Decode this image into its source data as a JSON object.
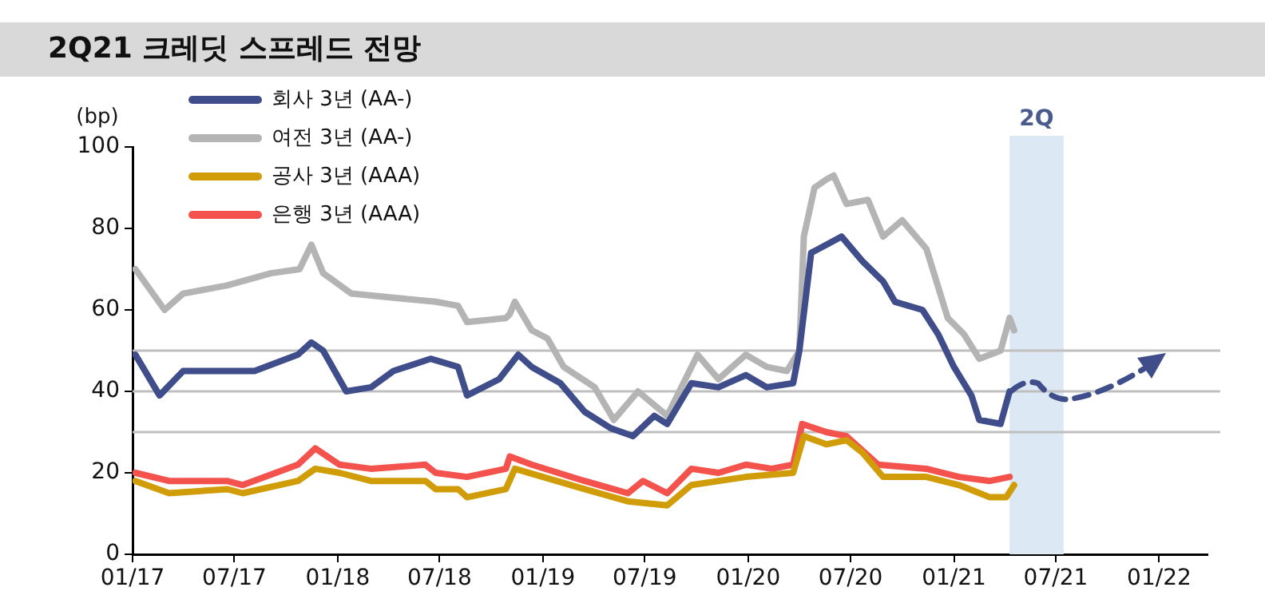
{
  "chart_data": {
    "type": "line",
    "title": "2Q21 크레딧 스프레드 전망",
    "ylabel": "(bp)",
    "xlim": [
      "2017-01-01",
      "2022-03-28"
    ],
    "xticks": [
      {
        "value": "2017-01-01",
        "label": "01/17"
      },
      {
        "value": "2017-07-01",
        "label": "07/17"
      },
      {
        "value": "2018-01-01",
        "label": "01/18"
      },
      {
        "value": "2018-07-01",
        "label": "07/18"
      },
      {
        "value": "2019-01-01",
        "label": "01/19"
      },
      {
        "value": "2019-07-01",
        "label": "07/19"
      },
      {
        "value": "2020-01-01",
        "label": "01/20"
      },
      {
        "value": "2020-07-01",
        "label": "07/20"
      },
      {
        "value": "2021-01-01",
        "label": "01/21"
      },
      {
        "value": "2021-07-01",
        "label": "07/21"
      },
      {
        "value": "2022-01-01",
        "label": "01/22"
      }
    ],
    "ylim": [
      0,
      100
    ],
    "yticks": [
      0,
      20,
      40,
      60,
      80,
      100
    ],
    "grid": false,
    "legend": "top left",
    "series": [
      {
        "name": "회사 3년 (AA-)",
        "color": "#3f4d8a",
        "x": [
          "2017-01-06",
          "2017-02-18",
          "2017-04-01",
          "2017-06-10",
          "2017-08-06",
          "2017-10-22",
          "2017-11-15",
          "2017-12-06",
          "2018-01-16",
          "2018-03-01",
          "2018-04-10",
          "2018-06-15",
          "2018-08-03",
          "2018-08-19",
          "2018-10-15",
          "2018-11-18",
          "2018-12-12",
          "2019-02-01",
          "2019-03-16",
          "2019-05-01",
          "2019-06-10",
          "2019-07-18",
          "2019-08-10",
          "2019-09-22",
          "2019-11-09",
          "2019-12-28",
          "2020-02-03",
          "2020-03-21",
          "2020-04-01",
          "2020-04-22",
          "2020-05-19",
          "2020-06-15",
          "2020-07-22",
          "2020-08-28",
          "2020-09-18",
          "2020-11-06",
          "2020-12-04",
          "2021-01-01",
          "2021-02-01",
          "2021-02-15",
          "2021-03-25",
          "2021-04-10"
        ],
        "values": [
          49,
          39,
          45,
          45,
          45,
          49,
          52,
          50,
          40,
          41,
          45,
          48,
          46,
          39,
          43,
          49,
          46,
          42,
          35,
          31,
          29,
          34,
          32,
          42,
          41,
          44,
          41,
          42,
          50,
          74,
          76,
          78,
          72,
          67,
          62,
          60,
          54,
          46,
          39,
          33,
          32,
          40
        ]
      },
      {
        "name": "여전 3년 (AA-)",
        "color": "#b4b4b4",
        "x": [
          "2017-01-06",
          "2017-02-27",
          "2017-04-01",
          "2017-06-18",
          "2017-09-04",
          "2017-10-25",
          "2017-11-15",
          "2017-12-06",
          "2018-01-25",
          "2018-04-10",
          "2018-06-24",
          "2018-08-03",
          "2018-08-19",
          "2018-10-27",
          "2018-11-03",
          "2018-11-12",
          "2018-12-12",
          "2019-01-09",
          "2019-02-07",
          "2019-04-03",
          "2019-05-07",
          "2019-06-19",
          "2019-08-10",
          "2019-10-03",
          "2019-11-09",
          "2019-12-28",
          "2020-02-03",
          "2020-03-10",
          "2020-04-01",
          "2020-04-09",
          "2020-04-28",
          "2020-05-19",
          "2020-06-01",
          "2020-06-24",
          "2020-08-01",
          "2020-08-28",
          "2020-10-01",
          "2020-11-13",
          "2020-12-21",
          "2021-01-19",
          "2021-02-15",
          "2021-03-25",
          "2021-04-10",
          "2021-04-18"
        ],
        "values": [
          70,
          60,
          64,
          66,
          69,
          70,
          76,
          69,
          64,
          63,
          62,
          61,
          57,
          58,
          59,
          62,
          55,
          53,
          46,
          41,
          33,
          40,
          34,
          49,
          43,
          49,
          46,
          45,
          50,
          78,
          90,
          92,
          93,
          86,
          87,
          78,
          82,
          75,
          58,
          54,
          48,
          50,
          58,
          55
        ]
      },
      {
        "name": "공사 3년 (AAA)",
        "color": "#d09c08",
        "x": [
          "2017-01-06",
          "2017-03-07",
          "2017-06-18",
          "2017-07-16",
          "2017-10-22",
          "2017-11-22",
          "2018-01-04",
          "2018-03-01",
          "2018-06-06",
          "2018-06-24",
          "2018-08-03",
          "2018-08-19",
          "2018-10-27",
          "2018-11-12",
          "2019-03-16",
          "2019-06-01",
          "2019-08-10",
          "2019-09-22",
          "2019-12-28",
          "2020-03-21",
          "2020-04-09",
          "2020-05-19",
          "2020-06-24",
          "2020-07-22",
          "2020-08-28",
          "2020-11-13",
          "2021-01-10",
          "2021-03-06",
          "2021-04-04",
          "2021-04-18"
        ],
        "values": [
          18,
          15,
          16,
          15,
          18,
          21,
          20,
          18,
          18,
          16,
          16,
          14,
          16,
          21,
          16,
          13,
          12,
          17,
          19,
          20,
          29,
          27,
          28,
          25,
          19,
          19,
          17,
          14,
          14,
          17
        ]
      },
      {
        "name": "은행 3년 (AAA)",
        "color": "#f4524d",
        "x": [
          "2017-01-06",
          "2017-03-07",
          "2017-06-18",
          "2017-07-16",
          "2017-10-22",
          "2017-11-22",
          "2018-01-04",
          "2018-03-01",
          "2018-06-06",
          "2018-06-24",
          "2018-08-19",
          "2018-10-27",
          "2018-11-03",
          "2018-12-12",
          "2019-03-16",
          "2019-06-01",
          "2019-06-28",
          "2019-08-10",
          "2019-09-22",
          "2019-11-09",
          "2019-12-28",
          "2020-02-12",
          "2020-03-21",
          "2020-04-06",
          "2020-05-19",
          "2020-06-24",
          "2020-08-19",
          "2020-11-13",
          "2021-01-10",
          "2021-03-06",
          "2021-04-10"
        ],
        "values": [
          20,
          18,
          18,
          17,
          22,
          26,
          22,
          21,
          22,
          20,
          19,
          21,
          24,
          22,
          18,
          15,
          18,
          15,
          21,
          20,
          22,
          21,
          22,
          32,
          30,
          29,
          22,
          21,
          19,
          18,
          19
        ]
      }
    ],
    "ref_lines": [
      {
        "axis": "y",
        "value": 30,
        "color": "#bfbfbf"
      },
      {
        "axis": "y",
        "value": 40,
        "color": "#bfbfbf"
      },
      {
        "axis": "y",
        "value": 50,
        "color": "#bfbfbf"
      }
    ],
    "bands": [
      {
        "axis": "x",
        "from": "2021-04-10",
        "to": "2021-07-15",
        "label": "2Q",
        "color": "#dde8f5"
      }
    ]
  }
}
